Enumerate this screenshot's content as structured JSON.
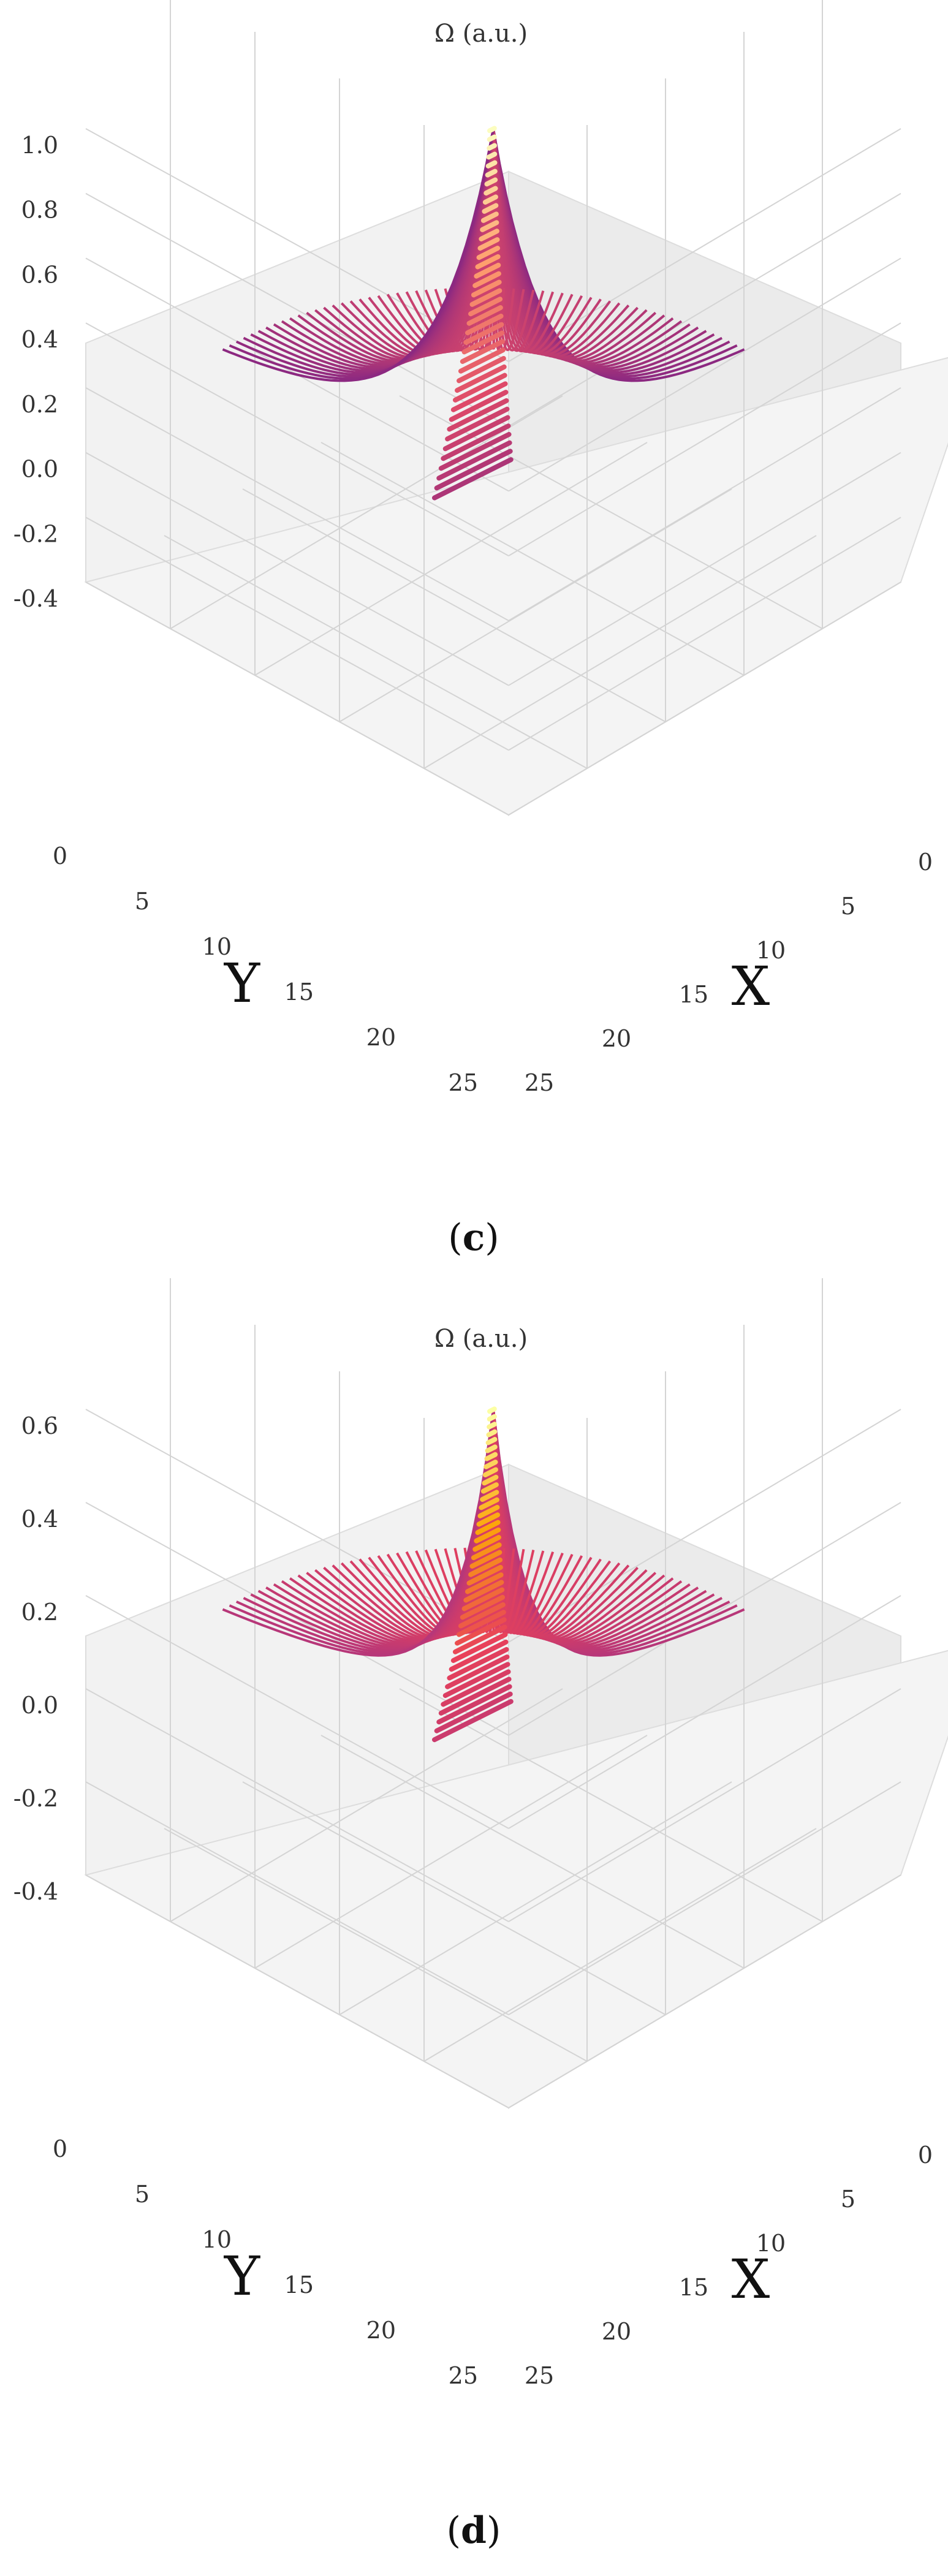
{
  "chart_data": [
    {
      "type": "surface-3d",
      "panel_label": "c",
      "zlabel": "Ω (a.u.)",
      "xlabel": "X",
      "ylabel": "Y",
      "x_ticks": [
        "0",
        "5",
        "10",
        "15",
        "20",
        "25"
      ],
      "y_ticks": [
        "0",
        "5",
        "10",
        "15",
        "20",
        "25"
      ],
      "z_ticks": [
        "1.0",
        "0.8",
        "0.6",
        "0.4",
        "0.2",
        "0.0",
        "-0.2",
        "-0.4"
      ],
      "xlim": [
        0,
        25
      ],
      "ylim": [
        0,
        25
      ],
      "zlim": [
        -0.4,
        1.0
      ],
      "peak": {
        "x": 12.5,
        "y": 12.5,
        "z": 1.0
      },
      "colormap": [
        "#3b0f70",
        "#8c2981",
        "#de4968",
        "#fe9f6d",
        "#fcfdbf"
      ]
    },
    {
      "type": "surface-3d",
      "panel_label": "d",
      "zlabel": "Ω (a.u.)",
      "xlabel": "X",
      "ylabel": "Y",
      "x_ticks": [
        "0",
        "5",
        "10",
        "15",
        "20",
        "25"
      ],
      "y_ticks": [
        "0",
        "5",
        "10",
        "15",
        "20",
        "25"
      ],
      "z_ticks": [
        "0.6",
        "0.4",
        "0.2",
        "0.0",
        "-0.2",
        "-0.4"
      ],
      "xlim": [
        0,
        25
      ],
      "ylim": [
        0,
        25
      ],
      "zlim": [
        -0.4,
        0.6
      ],
      "peak": {
        "x": 12.5,
        "y": 12.5,
        "z": 0.6
      },
      "colormap": [
        "#3b0f70",
        "#b73779",
        "#e8415a",
        "#fca50a",
        "#fcffa4"
      ]
    }
  ]
}
